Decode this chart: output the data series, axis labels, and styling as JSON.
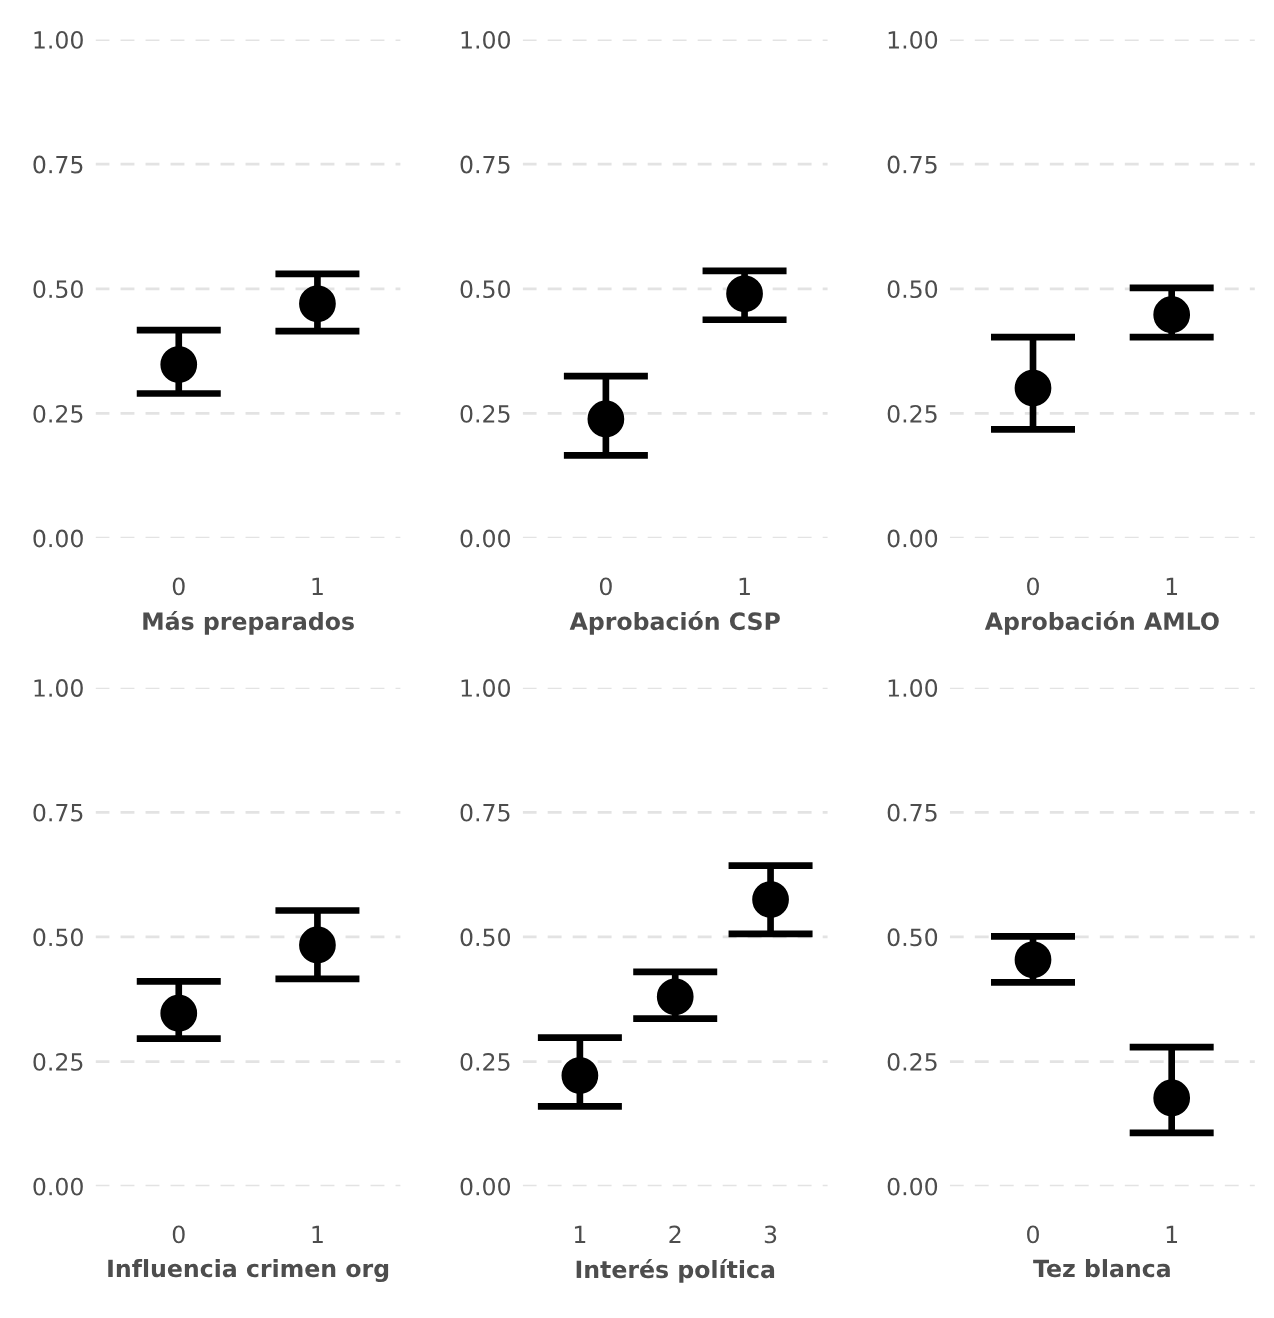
{
  "chart_data": [
    {
      "type": "scatter",
      "xlabel": "Más preparados",
      "categories": [
        "0",
        "1"
      ],
      "values": [
        0.348,
        0.47
      ],
      "errors": [
        [
          0.29,
          0.417
        ],
        [
          0.415,
          0.53
        ]
      ],
      "color": "#000000",
      "marker": "circle",
      "ylim": [
        0,
        1
      ],
      "yticks": [
        {
          "value": 0,
          "label": "0.00"
        },
        {
          "value": 0.25,
          "label": "0.25"
        },
        {
          "value": 0.5,
          "label": "0.50"
        },
        {
          "value": 0.75,
          "label": "0.75"
        },
        {
          "value": 1,
          "label": "1.00"
        }
      ],
      "grid": "y"
    },
    {
      "type": "scatter",
      "xlabel": "Aprobación CSP",
      "categories": [
        "0",
        "1"
      ],
      "values": [
        0.239,
        0.49
      ],
      "errors": [
        [
          0.166,
          0.325
        ],
        [
          0.438,
          0.536
        ]
      ],
      "color": "#000000",
      "marker": "circle",
      "ylim": [
        0,
        1
      ],
      "yticks": [
        {
          "value": 0,
          "label": "0.00"
        },
        {
          "value": 0.25,
          "label": "0.25"
        },
        {
          "value": 0.5,
          "label": "0.50"
        },
        {
          "value": 0.75,
          "label": "0.75"
        },
        {
          "value": 1,
          "label": "1.00"
        }
      ],
      "grid": "y"
    },
    {
      "type": "scatter",
      "xlabel": "Aprobación AMLO",
      "categories": [
        "0",
        "1"
      ],
      "values": [
        0.301,
        0.448
      ],
      "errors": [
        [
          0.218,
          0.403
        ],
        [
          0.403,
          0.502
        ]
      ],
      "color": "#000000",
      "marker": "circle",
      "ylim": [
        0,
        1
      ],
      "yticks": [
        {
          "value": 0,
          "label": "0.00"
        },
        {
          "value": 0.25,
          "label": "0.25"
        },
        {
          "value": 0.5,
          "label": "0.50"
        },
        {
          "value": 0.75,
          "label": "0.75"
        },
        {
          "value": 1,
          "label": "1.00"
        }
      ],
      "grid": "y"
    },
    {
      "type": "scatter",
      "xlabel": "Influencia crimen org",
      "categories": [
        "0",
        "1"
      ],
      "values": [
        0.347,
        0.484
      ],
      "errors": [
        [
          0.296,
          0.411
        ],
        [
          0.416,
          0.553
        ]
      ],
      "color": "#000000",
      "marker": "circle",
      "ylim": [
        0,
        1
      ],
      "yticks": [
        {
          "value": 0,
          "label": "0.00"
        },
        {
          "value": 0.25,
          "label": "0.25"
        },
        {
          "value": 0.5,
          "label": "0.50"
        },
        {
          "value": 0.75,
          "label": "0.75"
        },
        {
          "value": 1,
          "label": "1.00"
        }
      ],
      "grid": "y"
    },
    {
      "type": "scatter",
      "xlabel": "Interés política",
      "categories": [
        "1",
        "2",
        "3"
      ],
      "values": [
        0.222,
        0.38,
        0.575
      ],
      "errors": [
        [
          0.16,
          0.298
        ],
        [
          0.336,
          0.43
        ],
        [
          0.506,
          0.643
        ]
      ],
      "color": "#000000",
      "marker": "circle",
      "ylim": [
        0,
        1
      ],
      "yticks": [
        {
          "value": 0,
          "label": "0.00"
        },
        {
          "value": 0.25,
          "label": "0.25"
        },
        {
          "value": 0.5,
          "label": "0.50"
        },
        {
          "value": 0.75,
          "label": "0.75"
        },
        {
          "value": 1,
          "label": "1.00"
        }
      ],
      "grid": "y"
    },
    {
      "type": "scatter",
      "xlabel": "Tez blanca",
      "categories": [
        "0",
        "1"
      ],
      "values": [
        0.454,
        0.177
      ],
      "errors": [
        [
          0.409,
          0.501
        ],
        [
          0.107,
          0.279
        ]
      ],
      "color": "#000000",
      "marker": "circle",
      "ylim": [
        0,
        1
      ],
      "yticks": [
        {
          "value": 0,
          "label": "0.00"
        },
        {
          "value": 0.25,
          "label": "0.25"
        },
        {
          "value": 0.5,
          "label": "0.50"
        },
        {
          "value": 0.75,
          "label": "0.75"
        },
        {
          "value": 1,
          "label": "1.00"
        }
      ],
      "grid": "y"
    }
  ]
}
